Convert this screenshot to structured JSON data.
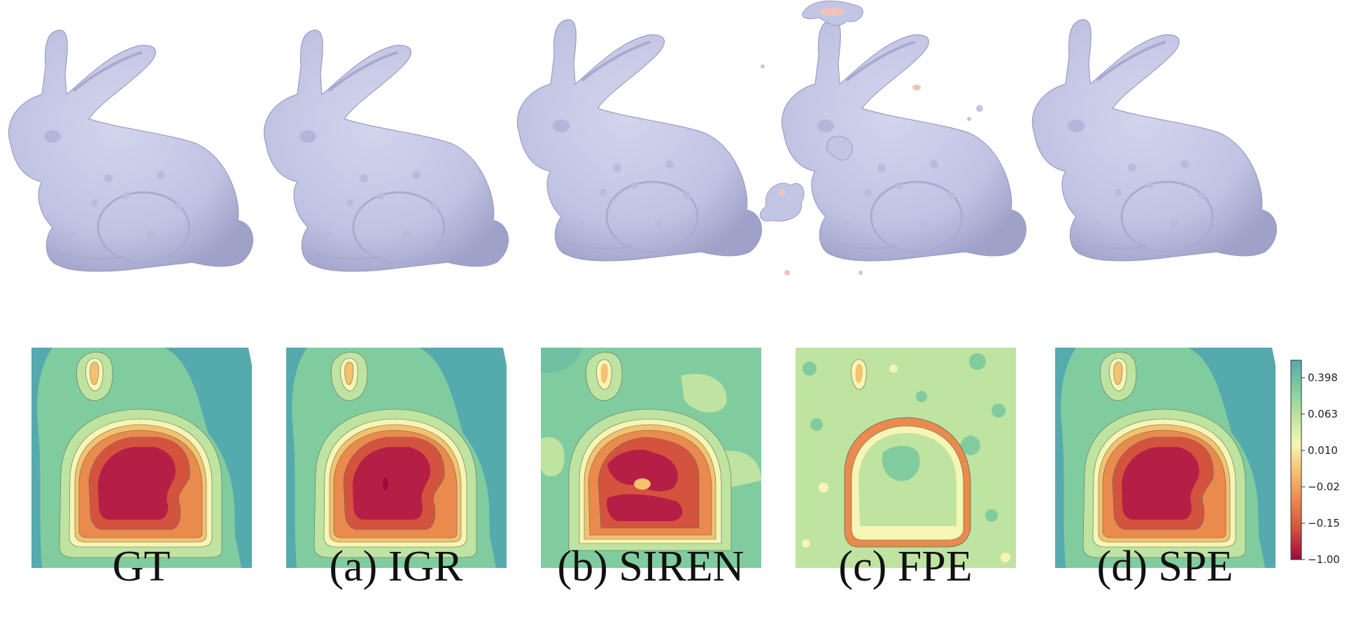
{
  "figure": {
    "panels": [
      {
        "id": "gt",
        "label": "GT"
      },
      {
        "id": "igr",
        "prefix": "(a)",
        "label": "IGR"
      },
      {
        "id": "siren",
        "prefix": "(b)",
        "label": "SIREN"
      },
      {
        "id": "fpe",
        "prefix": "(c)",
        "label": "FPE"
      },
      {
        "id": "spe",
        "prefix": "(d)",
        "label": "SPE"
      }
    ],
    "colorbar": {
      "tick_labels": [
        "0.398",
        "0.063",
        "0.010",
        "−0.02",
        "−0.15",
        "−1.00"
      ],
      "colors": [
        "#55aaad",
        "#80cc9f",
        "#bfe3a0",
        "#f6f5b4",
        "#f4c26e",
        "#ea8a4d",
        "#d4533f",
        "#b61f45",
        "#9c0a3c"
      ]
    },
    "colors": {
      "mesh_fill": "#c3c5e4",
      "mesh_shade": "#a6a8cf",
      "artifact": "#f0c3bc"
    }
  }
}
